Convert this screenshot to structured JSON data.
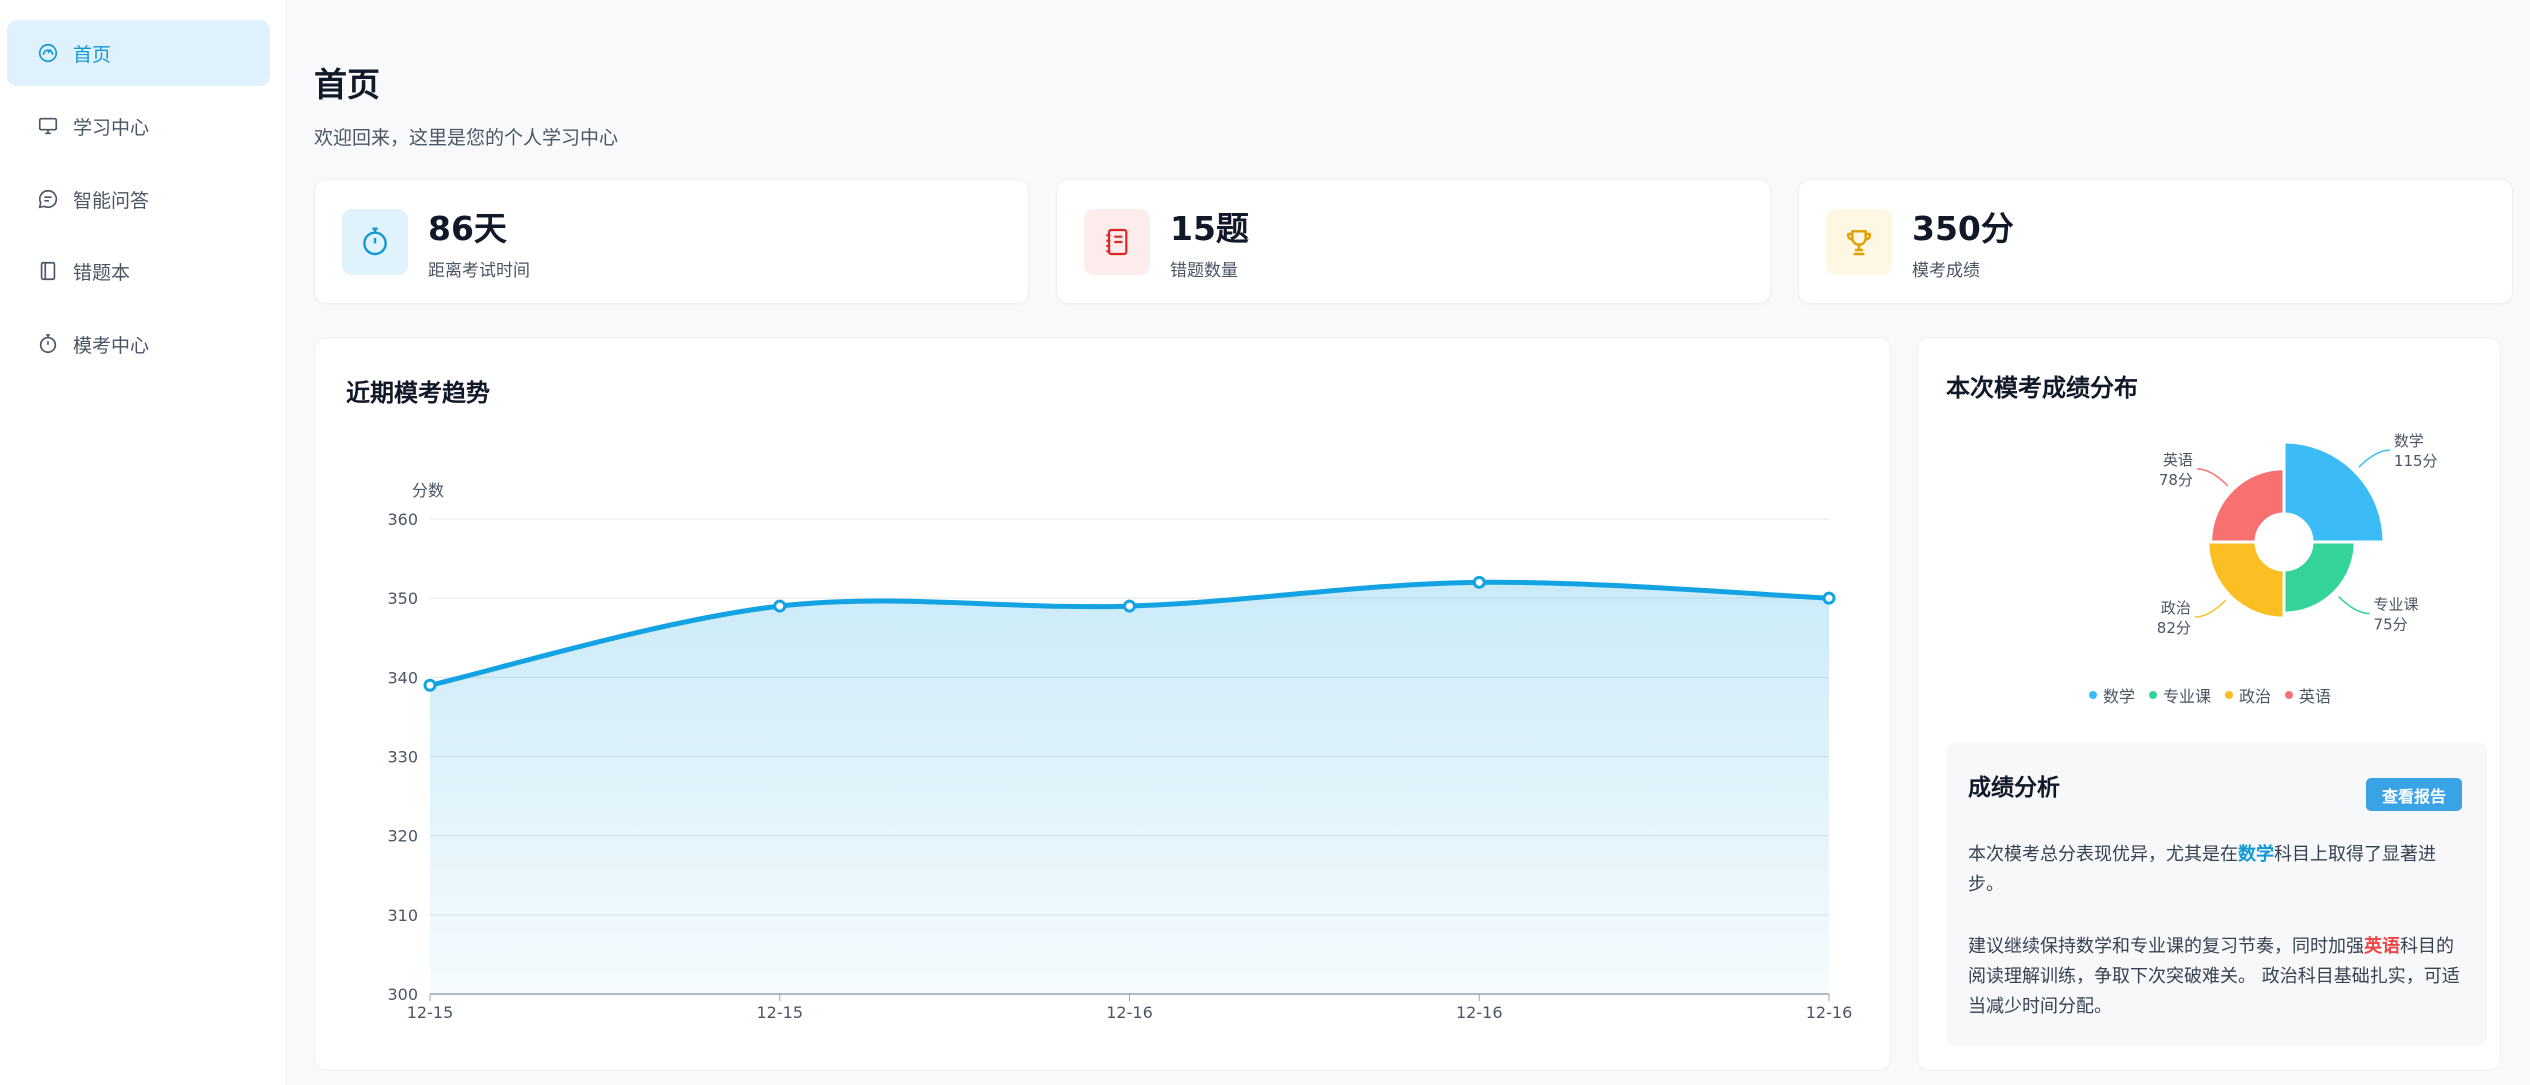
{
  "sidebar": {
    "items": [
      {
        "label": "首页",
        "icon": "dashboard-icon",
        "active": true
      },
      {
        "label": "学习中心",
        "icon": "monitor-icon",
        "active": false
      },
      {
        "label": "智能问答",
        "icon": "chat-icon",
        "active": false
      },
      {
        "label": "错题本",
        "icon": "notebook-icon",
        "active": false
      },
      {
        "label": "模考中心",
        "icon": "stopwatch-icon",
        "active": false
      }
    ]
  },
  "header": {
    "title": "首页",
    "subtitle": "欢迎回来，这里是您的个人学习中心"
  },
  "stats": [
    {
      "value": "86天",
      "label": "距离考试时间",
      "icon": "stopwatch-icon",
      "color": "#1199d6",
      "bg": "#e0f2fc"
    },
    {
      "value": "15题",
      "label": "错题数量",
      "icon": "notebook-icon",
      "color": "#dc2626",
      "bg": "#fdecec"
    },
    {
      "value": "350分",
      "label": "模考成绩",
      "icon": "trophy-icon",
      "color": "#e0a100",
      "bg": "#fdf7e3"
    }
  ],
  "trend": {
    "title": "近期模考趋势"
  },
  "pie": {
    "title": "本次模考成绩分布"
  },
  "analysis": {
    "title": "成绩分析",
    "button": "查看报告",
    "p1_before": "本次模考总分表现优异，尤其是在",
    "p1_highlight": "数学",
    "p1_after": "科目上取得了显著进步。",
    "p2_before": "建议继续保持数学和专业课的复习节奏，同时加强",
    "p2_highlight": "英语",
    "p2_after": "科目的阅读理解训练，争取下次突破难关。 政治科目基础扎实，可适当减少时间分配。"
  },
  "chart_data": [
    {
      "type": "area",
      "title": "近期模考趋势",
      "ylabel": "分数",
      "x": [
        "12-15",
        "12-15",
        "12-16",
        "12-16",
        "12-16"
      ],
      "values": [
        339,
        349,
        349,
        352,
        350
      ],
      "ylim": [
        300,
        360
      ],
      "yticks": [
        300,
        310,
        320,
        330,
        340,
        350,
        360
      ],
      "grid": true,
      "color": "#13a3e3"
    },
    {
      "type": "pie",
      "title": "本次模考成绩分布",
      "rose": true,
      "categories": [
        "数学",
        "专业课",
        "政治",
        "英语"
      ],
      "values": [
        115,
        75,
        82,
        78
      ],
      "value_labels": [
        "115分",
        "75分",
        "82分",
        "78分"
      ],
      "colors": [
        "#3bbcf6",
        "#34d399",
        "#fbbf24",
        "#f87171"
      ],
      "legend": "bottom"
    }
  ]
}
